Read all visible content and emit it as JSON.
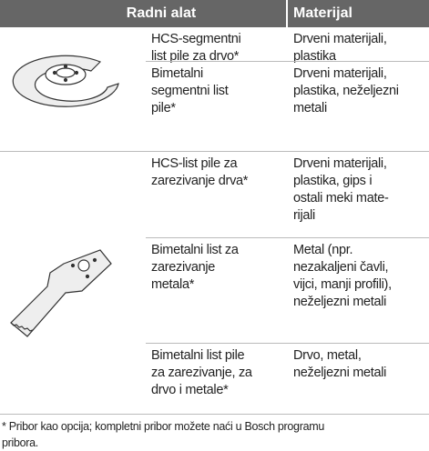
{
  "header": {
    "tool": "Radni alat",
    "material": "Materijal"
  },
  "rows": [
    {
      "tool": [
        "HCS-segmentni",
        "list pile za drvo*"
      ],
      "material": [
        "Drveni materijali,",
        "plastika"
      ]
    },
    {
      "tool": [
        "Bimetalni",
        "segmentni list",
        "pile*"
      ],
      "material": [
        "Drveni materijali,",
        "plastika, neželjezni",
        "metali"
      ]
    },
    {
      "tool": [
        "HCS-list pile za",
        "zarezivanje drva*"
      ],
      "material": [
        "Drveni materijali,",
        "plastika, gips i",
        "ostali meki mate-",
        "rijali"
      ]
    },
    {
      "tool": [
        "Bimetalni list za",
        "zarezivanje",
        "metala*"
      ],
      "material": [
        "Metal (npr.",
        "nezakaljeni čavli,",
        "vijci, manji profili),",
        "neželjezni metali"
      ]
    },
    {
      "tool": [
        "Bimetalni list pile",
        "za zarezivanje, za",
        "drvo i metale*"
      ],
      "material": [
        "Drvo, metal,",
        "neželjezni metali"
      ]
    }
  ],
  "footnote": [
    "* Pribor kao opcija; kompletni pribor možete naći u Bosch programu",
    "pribora."
  ]
}
